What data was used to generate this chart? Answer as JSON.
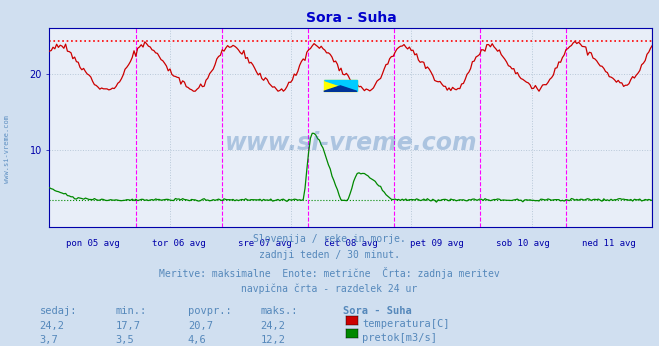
{
  "title": "Sora - Suha",
  "title_color": "#0000cc",
  "background_color": "#d0dff0",
  "plot_bg_color": "#e8eef8",
  "grid_color": "#b8c8d8",
  "fig_width": 6.59,
  "fig_height": 3.46,
  "dpi": 100,
  "ylim": [
    0,
    26
  ],
  "yticks": [
    10,
    20
  ],
  "temp_color": "#cc0000",
  "flow_color": "#008800",
  "max_line_color": "#ff0000",
  "flow_min_line_color": "#008800",
  "vline_color": "#ff00ff",
  "border_color": "#3355aa",
  "axis_color": "#0000aa",
  "x_labels": [
    "pon 05 avg",
    "tor 06 avg",
    "sre 07 avg",
    "čet 08 avg",
    "pet 09 avg",
    "sob 10 avg",
    "ned 11 avg"
  ],
  "subtitle_lines": [
    "Slovenija / reke in morje.",
    "zadnji teden / 30 minut.",
    "Meritve: maksimalne  Enote: metrične  Črta: zadnja meritev",
    "navpična črta - razdelek 24 ur"
  ],
  "subtitle_color": "#5588bb",
  "subtitle_fontsize": 7.0,
  "table_header": [
    "sedaj:",
    "min.:",
    "povpr.:",
    "maks.:",
    "Sora - Suha"
  ],
  "table_row1": [
    "24,2",
    "17,7",
    "20,7",
    "24,2",
    "temperatura[C]"
  ],
  "table_row2": [
    "3,7",
    "3,5",
    "4,6",
    "12,2",
    "pretok[m3/s]"
  ],
  "table_color": "#5588bb",
  "temp_max": 24.2,
  "temp_min": 17.7,
  "flow_max": 12.2,
  "flow_base": 3.5,
  "watermark": "www.si-vreme.com",
  "watermark_color": "#2266aa",
  "watermark_alpha": 0.3,
  "n_points": 336
}
